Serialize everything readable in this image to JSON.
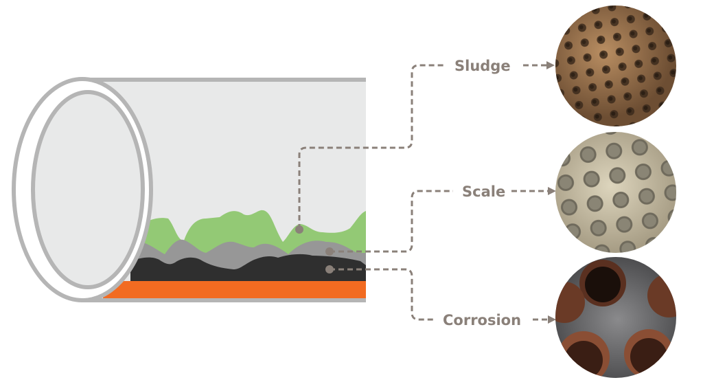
{
  "labels": {
    "sludge": "Sludge",
    "scale": "Scale",
    "corrosion": "Corrosion"
  },
  "colors": {
    "pipe_interior": "#e8e9e9",
    "pipe_wall": "#b5b5b5",
    "sludge": "#93c975",
    "scale": "#979797",
    "corrosion_deposit": "#2f2f2f",
    "pipe_metal": "#f26b21",
    "connector": "#8a8079"
  },
  "photos": [
    {
      "name": "sludge-photo",
      "tone": "#9a7452"
    },
    {
      "name": "scale-photo",
      "tone": "#cfc6ad"
    },
    {
      "name": "corrosion-photo",
      "tone": "#6e6e70"
    }
  ]
}
